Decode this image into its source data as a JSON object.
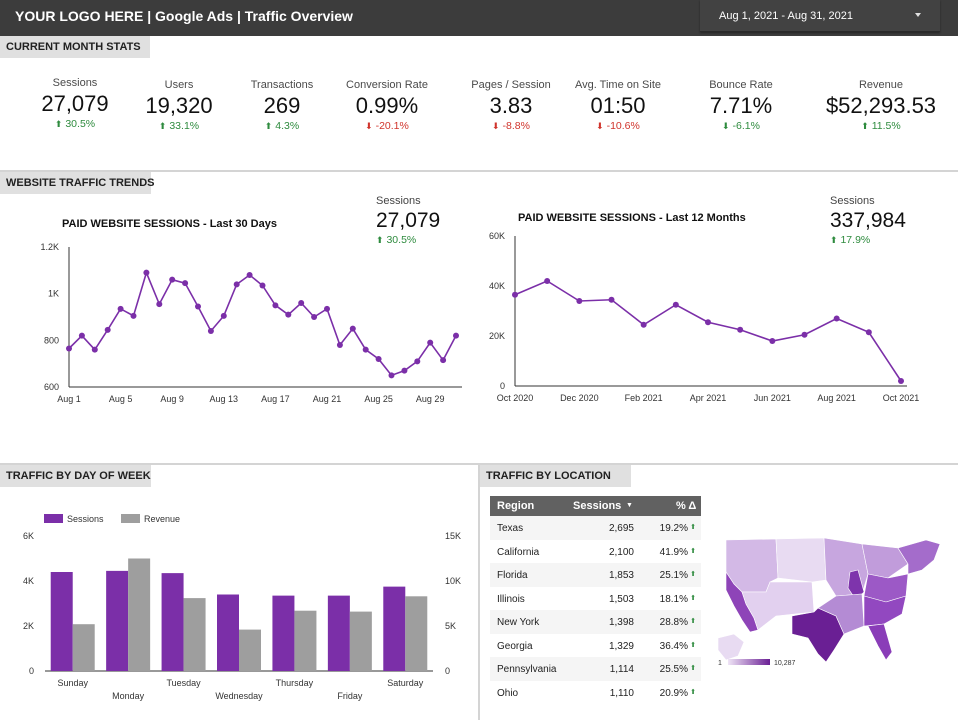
{
  "header": {
    "title": "YOUR LOGO HERE | Google Ads | Traffic Overview",
    "date_range": "Aug 1, 2021 - Aug 31, 2021"
  },
  "sections": {
    "current_month": "CURRENT MONTH STATS",
    "trends": "WEBSITE TRAFFIC TRENDS",
    "day_of_week": "TRAFFIC BY DAY OF WEEK",
    "location": "TRAFFIC BY LOCATION"
  },
  "kpis": [
    {
      "label": "Sessions",
      "value": "27,079",
      "arrow": "⬆",
      "delta": "30.5%",
      "dir": "up"
    },
    {
      "label": "Users",
      "value": "19,320",
      "arrow": "⬆",
      "delta": "33.1%",
      "dir": "up"
    },
    {
      "label": "Transactions",
      "value": "269",
      "arrow": "⬆",
      "delta": "4.3%",
      "dir": "up"
    },
    {
      "label": "Conversion Rate",
      "value": "0.99%",
      "arrow": "⬇",
      "delta": "-20.1%",
      "dir": "down"
    },
    {
      "label": "Pages / Session",
      "value": "3.83",
      "arrow": "⬇",
      "delta": "-8.8%",
      "dir": "down"
    },
    {
      "label": "Avg. Time on Site",
      "value": "01:50",
      "arrow": "⬇",
      "delta": "-10.6%",
      "dir": "down"
    },
    {
      "label": "Bounce Rate",
      "value": "7.71%",
      "arrow": "⬇",
      "delta": "-6.1%",
      "dir": "up"
    },
    {
      "label": "Revenue",
      "value": "$52,293.53",
      "arrow": "⬆",
      "delta": "11.5%",
      "dir": "up"
    }
  ],
  "trend30": {
    "stat_label": "Sessions",
    "stat_value": "27,079",
    "arrow": "⬆",
    "stat_delta": "30.5%"
  },
  "trend12": {
    "stat_label": "Sessions",
    "stat_value": "337,984",
    "arrow": "⬆",
    "stat_delta": "17.9%"
  },
  "colors": {
    "purple": "#7b2fa8",
    "gray": "#9e9e9e",
    "up": "#2e8b3e",
    "down": "#d0342c"
  },
  "table": {
    "headers": {
      "region": "Region",
      "sessions": "Sessions",
      "sort_icon": "▼",
      "pct": "% Δ"
    },
    "rows": [
      {
        "region": "Texas",
        "sessions": "2,695",
        "pct": "19.2%",
        "arrow": "⬆"
      },
      {
        "region": "California",
        "sessions": "2,100",
        "pct": "41.9%",
        "arrow": "⬆"
      },
      {
        "region": "Florida",
        "sessions": "1,853",
        "pct": "25.1%",
        "arrow": "⬆"
      },
      {
        "region": "Illinois",
        "sessions": "1,503",
        "pct": "18.1%",
        "arrow": "⬆"
      },
      {
        "region": "New York",
        "sessions": "1,398",
        "pct": "28.8%",
        "arrow": "⬆"
      },
      {
        "region": "Georgia",
        "sessions": "1,329",
        "pct": "36.4%",
        "arrow": "⬆"
      },
      {
        "region": "Pennsylvania",
        "sessions": "1,114",
        "pct": "25.5%",
        "arrow": "⬆"
      },
      {
        "region": "Ohio",
        "sessions": "1,110",
        "pct": "20.9%",
        "arrow": "⬆"
      }
    ]
  },
  "map": {
    "legend_min": "1",
    "legend_max": "10,287"
  },
  "chart_data": [
    {
      "type": "line",
      "title": "PAID WEBSITE SESSIONS - Last 30 Days",
      "x": [
        "Aug 1",
        "Aug 2",
        "Aug 3",
        "Aug 4",
        "Aug 5",
        "Aug 6",
        "Aug 7",
        "Aug 8",
        "Aug 9",
        "Aug 10",
        "Aug 11",
        "Aug 12",
        "Aug 13",
        "Aug 14",
        "Aug 15",
        "Aug 16",
        "Aug 17",
        "Aug 18",
        "Aug 19",
        "Aug 20",
        "Aug 21",
        "Aug 22",
        "Aug 23",
        "Aug 24",
        "Aug 25",
        "Aug 26",
        "Aug 27",
        "Aug 28",
        "Aug 29",
        "Aug 30",
        "Aug 31"
      ],
      "x_tick_labels": [
        "Aug 1",
        "Aug 5",
        "Aug 9",
        "Aug 13",
        "Aug 17",
        "Aug 21",
        "Aug 25",
        "Aug 29"
      ],
      "values": [
        765,
        820,
        760,
        845,
        935,
        905,
        1090,
        955,
        1060,
        1045,
        945,
        840,
        905,
        1040,
        1080,
        1035,
        950,
        910,
        960,
        900,
        935,
        780,
        850,
        760,
        720,
        650,
        670,
        710,
        790,
        715,
        820
      ],
      "yticks": [
        "600",
        "800",
        "1K",
        "1.2K"
      ],
      "ylim": [
        600,
        1200
      ],
      "color": "#7b2fa8"
    },
    {
      "type": "line",
      "title": "PAID WEBSITE SESSIONS - Last 12 Months",
      "x": [
        "Oct 2020",
        "Nov 2020",
        "Dec 2020",
        "Jan 2021",
        "Feb 2021",
        "Mar 2021",
        "Apr 2021",
        "May 2021",
        "Jun 2021",
        "Jul 2021",
        "Aug 2021",
        "Sep 2021",
        "Oct 2021"
      ],
      "x_tick_labels": [
        "Oct 2020",
        "Dec 2020",
        "Feb 2021",
        "Apr 2021",
        "Jun 2021",
        "Aug 2021",
        "Oct 2021"
      ],
      "values": [
        36500,
        42000,
        34000,
        34500,
        24500,
        32500,
        25500,
        22500,
        18000,
        20500,
        27000,
        21500,
        2000
      ],
      "yticks": [
        "0",
        "20K",
        "40K",
        "60K"
      ],
      "ylim": [
        0,
        60000
      ],
      "color": "#7b2fa8"
    },
    {
      "type": "bar",
      "categories": [
        "Sunday",
        "Monday",
        "Tuesday",
        "Wednesday",
        "Thursday",
        "Friday",
        "Saturday"
      ],
      "series": [
        {
          "name": "Sessions",
          "values": [
            4400,
            4450,
            4350,
            3400,
            3350,
            3350,
            3750
          ],
          "color": "#7b2fa8",
          "axis": "left"
        },
        {
          "name": "Revenue",
          "values": [
            5200,
            12500,
            8100,
            4600,
            6700,
            6600,
            8300
          ],
          "color": "#9e9e9e",
          "axis": "right"
        }
      ],
      "yticks_left": [
        "0",
        "2K",
        "4K",
        "6K"
      ],
      "yticks_right": [
        "0",
        "5K",
        "10K",
        "15K"
      ],
      "ylim_left": [
        0,
        6000
      ],
      "ylim_right": [
        0,
        15000
      ],
      "legend": "top-left"
    }
  ]
}
